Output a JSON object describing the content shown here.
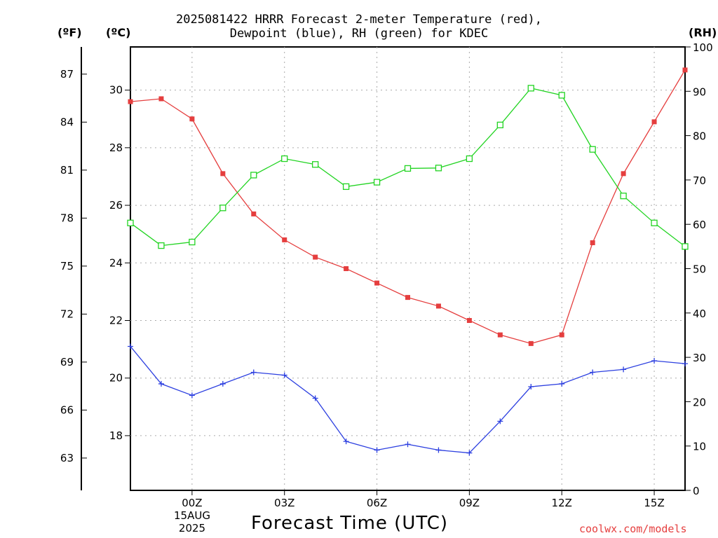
{
  "chart_data": {
    "type": "line",
    "title": [
      "2025081422 HRRR Forecast 2-meter Temperature (red),",
      "Dewpoint (blue), RH (green) for KDEC"
    ],
    "units": {
      "fahrenheit": "(ºF)",
      "celsius": "(ºC)",
      "rh": "(RH)"
    },
    "xlabel": "Forecast Time (UTC)",
    "x_date_label": [
      "15AUG",
      "2025"
    ],
    "credit": "coolwx.com/models",
    "x_range": [
      22,
      40
    ],
    "x_ticks": [
      {
        "x": 24,
        "label": "00Z"
      },
      {
        "x": 27,
        "label": "03Z"
      },
      {
        "x": 30,
        "label": "06Z"
      },
      {
        "x": 33,
        "label": "09Z"
      },
      {
        "x": 36,
        "label": "12Z"
      },
      {
        "x": 39,
        "label": "15Z"
      }
    ],
    "celsius_axis": {
      "range": [
        16.1,
        31.5
      ],
      "ticks": [
        18,
        20,
        22,
        24,
        26,
        28,
        30
      ]
    },
    "fahrenheit_ticks": [
      63,
      66,
      69,
      72,
      75,
      78,
      81,
      84,
      87
    ],
    "rh_axis": {
      "range": [
        0,
        100
      ],
      "ticks": [
        0,
        10,
        20,
        30,
        40,
        50,
        60,
        70,
        80,
        90,
        100
      ]
    },
    "grid": true,
    "x": [
      22,
      23,
      24,
      25,
      26,
      27,
      28,
      29,
      30,
      31,
      32,
      33,
      34,
      35,
      36,
      37,
      38,
      39,
      40
    ],
    "series": [
      {
        "color": "#e53e3e",
        "axis": "celsius",
        "marker": "filled-square",
        "values": [
          29.6,
          29.7,
          29.0,
          27.1,
          25.7,
          24.8,
          24.2,
          23.8,
          23.3,
          22.8,
          22.5,
          22.0,
          21.5,
          21.2,
          21.5,
          24.7,
          27.1,
          28.9,
          30.7
        ]
      },
      {
        "color": "#2c3fe0",
        "axis": "celsius",
        "marker": "plus",
        "values": [
          21.1,
          19.8,
          19.4,
          19.8,
          20.2,
          20.1,
          19.3,
          17.8,
          17.5,
          17.7,
          17.5,
          17.4,
          18.5,
          19.7,
          19.8,
          20.2,
          20.3,
          20.6,
          20.5
        ]
      },
      {
        "color": "#22d422",
        "axis": "rh",
        "marker": "open-square",
        "values": [
          60.3,
          55.2,
          56.0,
          63.7,
          71.1,
          74.8,
          73.5,
          68.5,
          69.5,
          72.6,
          72.7,
          74.8,
          82.4,
          90.7,
          89.1,
          76.9,
          66.4,
          60.3,
          55.0
        ]
      }
    ]
  }
}
